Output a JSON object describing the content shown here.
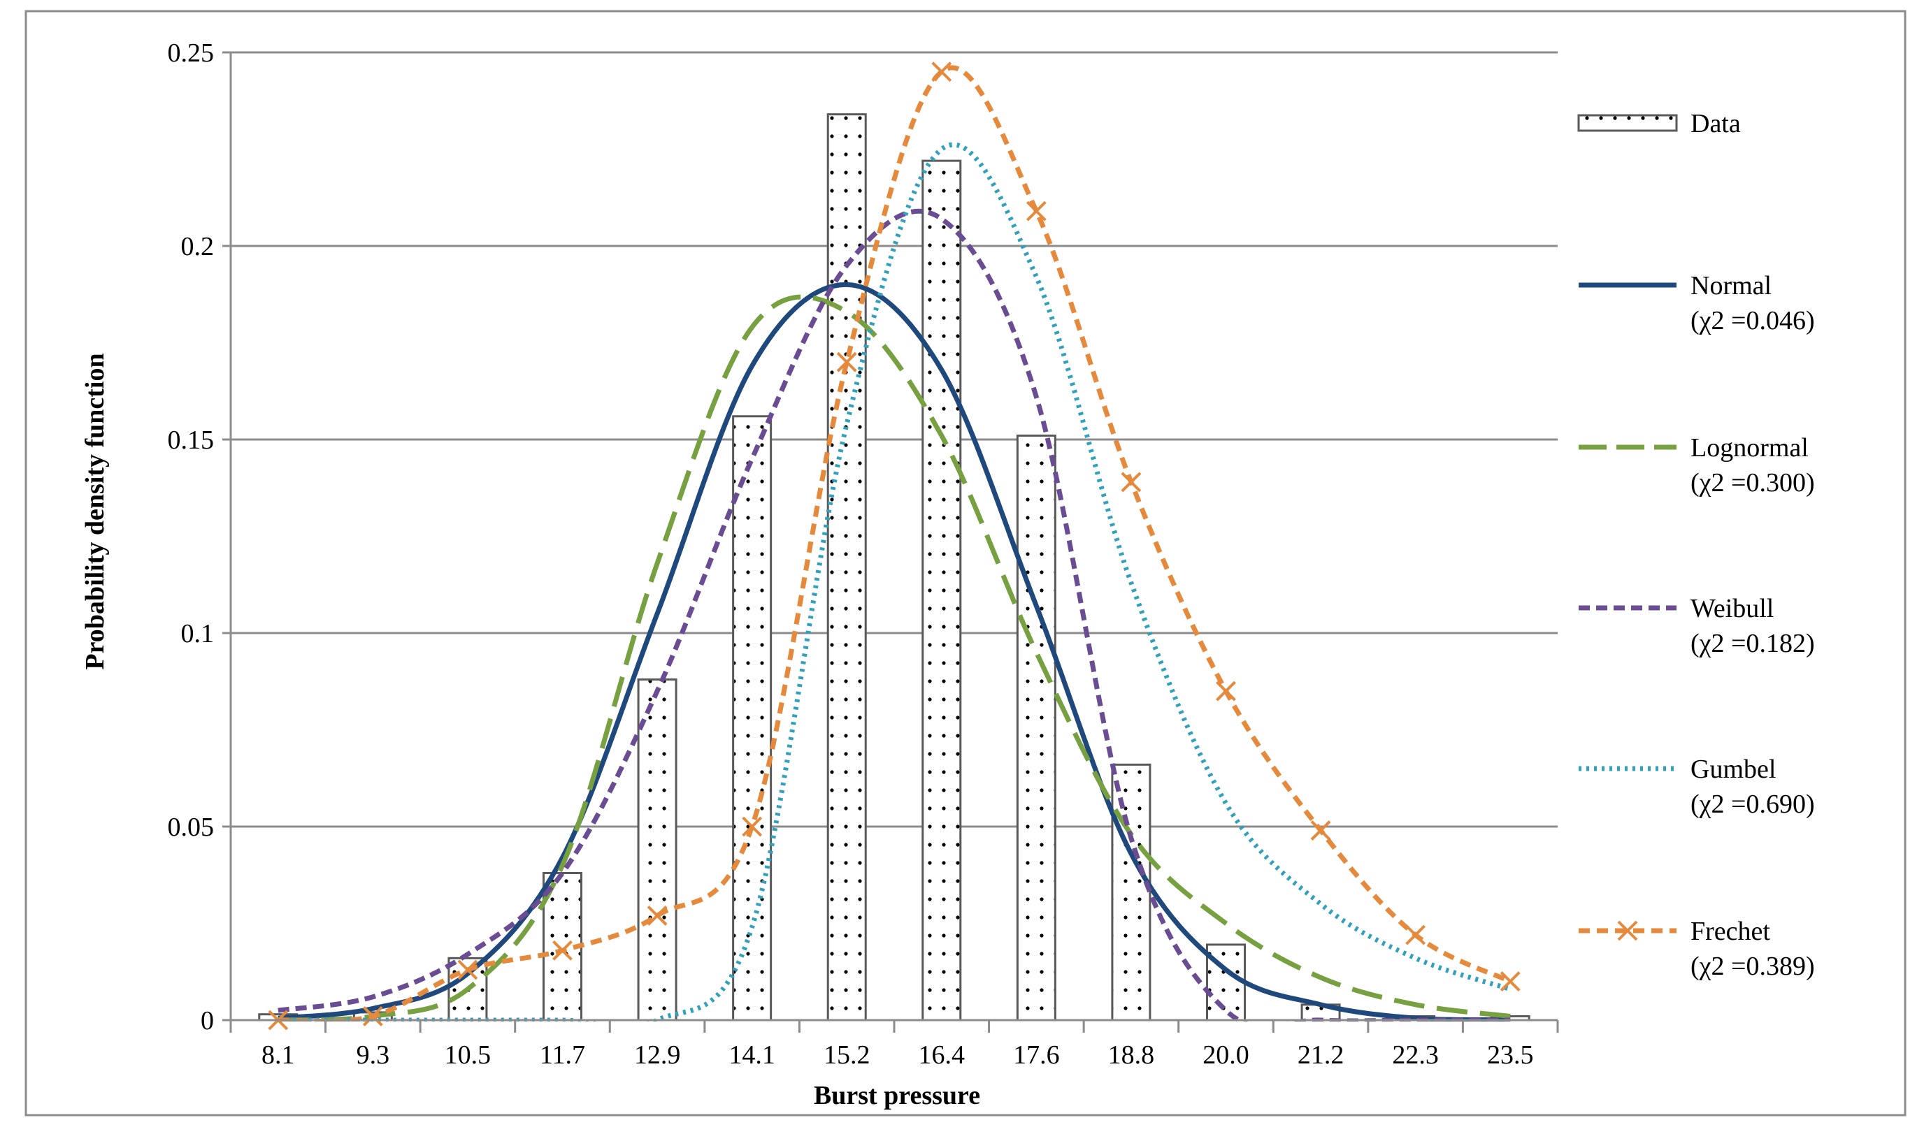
{
  "chart_data": {
    "type": "bar",
    "xlabel": "Burst pressure",
    "ylabel": "Probability density function",
    "categories": [
      "8.1",
      "9.3",
      "10.5",
      "11.7",
      "12.9",
      "14.1",
      "15.2",
      "16.4",
      "17.6",
      "18.8",
      "20.0",
      "21.2",
      "22.3",
      "23.5"
    ],
    "ylim": [
      0,
      0.25
    ],
    "y_ticks": [
      "0",
      "0.05",
      "0.1",
      "0.15",
      "0.2",
      "0.25"
    ],
    "grid": true,
    "legend_position": "right",
    "series": [
      {
        "name": "Data",
        "kind": "bar",
        "color": "#595959",
        "values": [
          0.0015,
          0.002,
          0.016,
          0.038,
          0.088,
          0.156,
          0.234,
          0.222,
          0.151,
          0.066,
          0.0195,
          0.004,
          0.001,
          0.001
        ]
      },
      {
        "name": "Normal",
        "stat": "(χ2 =0.046)",
        "kind": "line",
        "style": "solid",
        "color": "#1f497d",
        "values": [
          0.0005,
          0.003,
          0.012,
          0.042,
          0.105,
          0.169,
          0.19,
          0.168,
          0.107,
          0.043,
          0.013,
          0.004,
          0.0005,
          0.0001
        ]
      },
      {
        "name": "Lognormal",
        "stat": "(χ2 =0.300)",
        "kind": "line",
        "style": "longdash",
        "color": "#77a041",
        "values": [
          0.0,
          0.001,
          0.008,
          0.04,
          0.118,
          0.179,
          0.183,
          0.151,
          0.095,
          0.048,
          0.025,
          0.011,
          0.004,
          0.001
        ]
      },
      {
        "name": "Weibull",
        "stat": "(χ2 =0.182)",
        "kind": "line",
        "style": "dash",
        "color": "#6a4c93",
        "values": [
          0.0025,
          0.006,
          0.017,
          0.038,
          0.085,
          0.145,
          0.195,
          0.207,
          0.161,
          0.047,
          0.0025,
          0.0,
          0.0,
          0.0
        ]
      },
      {
        "name": "Gumbel",
        "stat": "(χ2 =0.690)",
        "kind": "line",
        "style": "dot",
        "color": "#31a0bb",
        "values": [
          0.0,
          0.0,
          0.0,
          0.0,
          0.0,
          0.024,
          0.154,
          0.225,
          0.192,
          0.113,
          0.056,
          0.03,
          0.016,
          0.008
        ]
      },
      {
        "name": "Frechet",
        "stat": "(χ2 =0.389)",
        "kind": "line",
        "style": "dash-x",
        "color": "#e58a3c",
        "values": [
          0.0,
          0.001,
          0.013,
          0.018,
          0.027,
          0.05,
          0.17,
          0.245,
          0.209,
          0.139,
          0.085,
          0.049,
          0.022,
          0.01
        ]
      }
    ]
  }
}
